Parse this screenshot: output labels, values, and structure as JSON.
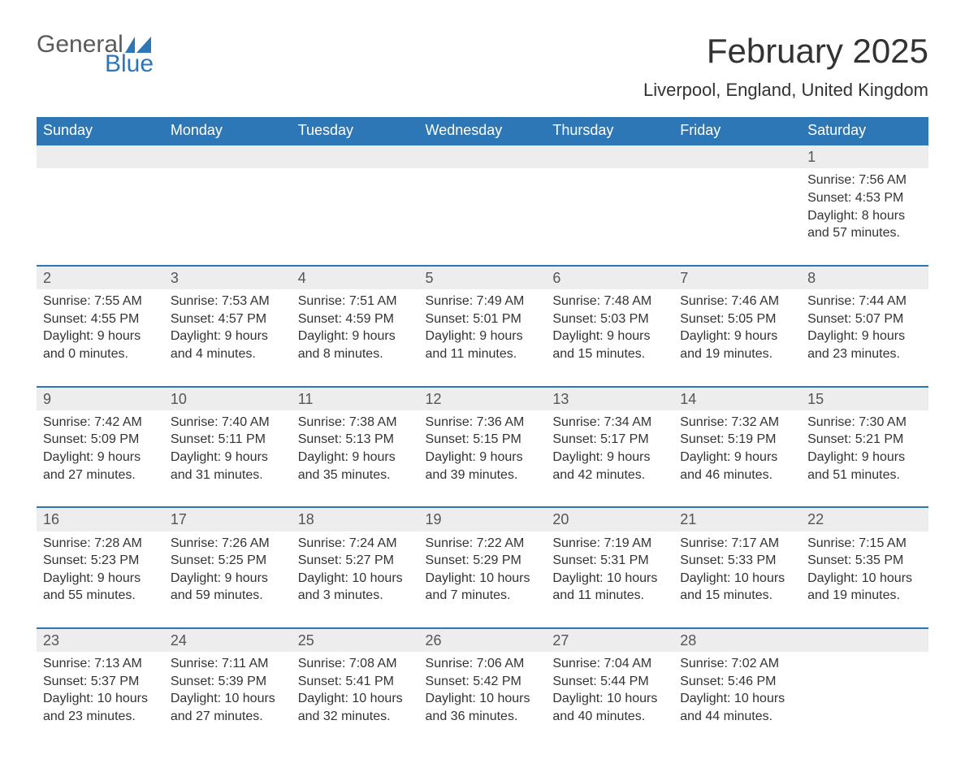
{
  "logo": {
    "text_top": "General",
    "text_bottom": "Blue",
    "shape_color": "#2d77b6"
  },
  "title": "February 2025",
  "location": "Liverpool, England, United Kingdom",
  "colors": {
    "header_bg": "#2d77b6",
    "header_text": "#ffffff",
    "row_band": "#ededed",
    "border_top": "#2d77b6",
    "body_text": "#333333"
  },
  "weekdays": [
    "Sunday",
    "Monday",
    "Tuesday",
    "Wednesday",
    "Thursday",
    "Friday",
    "Saturday"
  ],
  "weeks": [
    [
      null,
      null,
      null,
      null,
      null,
      null,
      {
        "num": "1",
        "sunrise": "Sunrise: 7:56 AM",
        "sunset": "Sunset: 4:53 PM",
        "day1": "Daylight: 8 hours",
        "day2": "and 57 minutes."
      }
    ],
    [
      {
        "num": "2",
        "sunrise": "Sunrise: 7:55 AM",
        "sunset": "Sunset: 4:55 PM",
        "day1": "Daylight: 9 hours",
        "day2": "and 0 minutes."
      },
      {
        "num": "3",
        "sunrise": "Sunrise: 7:53 AM",
        "sunset": "Sunset: 4:57 PM",
        "day1": "Daylight: 9 hours",
        "day2": "and 4 minutes."
      },
      {
        "num": "4",
        "sunrise": "Sunrise: 7:51 AM",
        "sunset": "Sunset: 4:59 PM",
        "day1": "Daylight: 9 hours",
        "day2": "and 8 minutes."
      },
      {
        "num": "5",
        "sunrise": "Sunrise: 7:49 AM",
        "sunset": "Sunset: 5:01 PM",
        "day1": "Daylight: 9 hours",
        "day2": "and 11 minutes."
      },
      {
        "num": "6",
        "sunrise": "Sunrise: 7:48 AM",
        "sunset": "Sunset: 5:03 PM",
        "day1": "Daylight: 9 hours",
        "day2": "and 15 minutes."
      },
      {
        "num": "7",
        "sunrise": "Sunrise: 7:46 AM",
        "sunset": "Sunset: 5:05 PM",
        "day1": "Daylight: 9 hours",
        "day2": "and 19 minutes."
      },
      {
        "num": "8",
        "sunrise": "Sunrise: 7:44 AM",
        "sunset": "Sunset: 5:07 PM",
        "day1": "Daylight: 9 hours",
        "day2": "and 23 minutes."
      }
    ],
    [
      {
        "num": "9",
        "sunrise": "Sunrise: 7:42 AM",
        "sunset": "Sunset: 5:09 PM",
        "day1": "Daylight: 9 hours",
        "day2": "and 27 minutes."
      },
      {
        "num": "10",
        "sunrise": "Sunrise: 7:40 AM",
        "sunset": "Sunset: 5:11 PM",
        "day1": "Daylight: 9 hours",
        "day2": "and 31 minutes."
      },
      {
        "num": "11",
        "sunrise": "Sunrise: 7:38 AM",
        "sunset": "Sunset: 5:13 PM",
        "day1": "Daylight: 9 hours",
        "day2": "and 35 minutes."
      },
      {
        "num": "12",
        "sunrise": "Sunrise: 7:36 AM",
        "sunset": "Sunset: 5:15 PM",
        "day1": "Daylight: 9 hours",
        "day2": "and 39 minutes."
      },
      {
        "num": "13",
        "sunrise": "Sunrise: 7:34 AM",
        "sunset": "Sunset: 5:17 PM",
        "day1": "Daylight: 9 hours",
        "day2": "and 42 minutes."
      },
      {
        "num": "14",
        "sunrise": "Sunrise: 7:32 AM",
        "sunset": "Sunset: 5:19 PM",
        "day1": "Daylight: 9 hours",
        "day2": "and 46 minutes."
      },
      {
        "num": "15",
        "sunrise": "Sunrise: 7:30 AM",
        "sunset": "Sunset: 5:21 PM",
        "day1": "Daylight: 9 hours",
        "day2": "and 51 minutes."
      }
    ],
    [
      {
        "num": "16",
        "sunrise": "Sunrise: 7:28 AM",
        "sunset": "Sunset: 5:23 PM",
        "day1": "Daylight: 9 hours",
        "day2": "and 55 minutes."
      },
      {
        "num": "17",
        "sunrise": "Sunrise: 7:26 AM",
        "sunset": "Sunset: 5:25 PM",
        "day1": "Daylight: 9 hours",
        "day2": "and 59 minutes."
      },
      {
        "num": "18",
        "sunrise": "Sunrise: 7:24 AM",
        "sunset": "Sunset: 5:27 PM",
        "day1": "Daylight: 10 hours",
        "day2": "and 3 minutes."
      },
      {
        "num": "19",
        "sunrise": "Sunrise: 7:22 AM",
        "sunset": "Sunset: 5:29 PM",
        "day1": "Daylight: 10 hours",
        "day2": "and 7 minutes."
      },
      {
        "num": "20",
        "sunrise": "Sunrise: 7:19 AM",
        "sunset": "Sunset: 5:31 PM",
        "day1": "Daylight: 10 hours",
        "day2": "and 11 minutes."
      },
      {
        "num": "21",
        "sunrise": "Sunrise: 7:17 AM",
        "sunset": "Sunset: 5:33 PM",
        "day1": "Daylight: 10 hours",
        "day2": "and 15 minutes."
      },
      {
        "num": "22",
        "sunrise": "Sunrise: 7:15 AM",
        "sunset": "Sunset: 5:35 PM",
        "day1": "Daylight: 10 hours",
        "day2": "and 19 minutes."
      }
    ],
    [
      {
        "num": "23",
        "sunrise": "Sunrise: 7:13 AM",
        "sunset": "Sunset: 5:37 PM",
        "day1": "Daylight: 10 hours",
        "day2": "and 23 minutes."
      },
      {
        "num": "24",
        "sunrise": "Sunrise: 7:11 AM",
        "sunset": "Sunset: 5:39 PM",
        "day1": "Daylight: 10 hours",
        "day2": "and 27 minutes."
      },
      {
        "num": "25",
        "sunrise": "Sunrise: 7:08 AM",
        "sunset": "Sunset: 5:41 PM",
        "day1": "Daylight: 10 hours",
        "day2": "and 32 minutes."
      },
      {
        "num": "26",
        "sunrise": "Sunrise: 7:06 AM",
        "sunset": "Sunset: 5:42 PM",
        "day1": "Daylight: 10 hours",
        "day2": "and 36 minutes."
      },
      {
        "num": "27",
        "sunrise": "Sunrise: 7:04 AM",
        "sunset": "Sunset: 5:44 PM",
        "day1": "Daylight: 10 hours",
        "day2": "and 40 minutes."
      },
      {
        "num": "28",
        "sunrise": "Sunrise: 7:02 AM",
        "sunset": "Sunset: 5:46 PM",
        "day1": "Daylight: 10 hours",
        "day2": "and 44 minutes."
      },
      null
    ]
  ]
}
